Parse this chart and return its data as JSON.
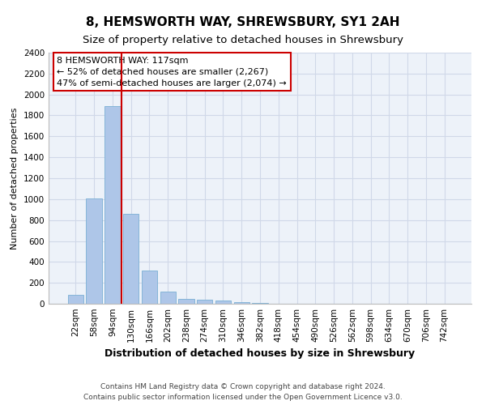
{
  "title": "8, HEMSWORTH WAY, SHREWSBURY, SY1 2AH",
  "subtitle": "Size of property relative to detached houses in Shrewsbury",
  "xlabel": "Distribution of detached houses by size in Shrewsbury",
  "ylabel": "Number of detached properties",
  "bin_labels": [
    "22sqm",
    "58sqm",
    "94sqm",
    "130sqm",
    "166sqm",
    "202sqm",
    "238sqm",
    "274sqm",
    "310sqm",
    "346sqm",
    "382sqm",
    "418sqm",
    "454sqm",
    "490sqm",
    "526sqm",
    "562sqm",
    "598sqm",
    "634sqm",
    "670sqm",
    "706sqm",
    "742sqm"
  ],
  "bin_values": [
    85,
    1010,
    1890,
    860,
    315,
    115,
    50,
    38,
    28,
    15,
    5,
    0,
    0,
    0,
    0,
    0,
    0,
    0,
    0,
    0,
    0
  ],
  "bar_color": "#aec6e8",
  "bar_edge_color": "#7aafd4",
  "vline_x": 2.5,
  "vline_color": "#cc0000",
  "annotation_text": "8 HEMSWORTH WAY: 117sqm\n← 52% of detached houses are smaller (2,267)\n47% of semi-detached houses are larger (2,074) →",
  "annotation_box_color": "#ffffff",
  "annotation_box_edge_color": "#cc0000",
  "ylim": [
    0,
    2400
  ],
  "yticks": [
    0,
    200,
    400,
    600,
    800,
    1000,
    1200,
    1400,
    1600,
    1800,
    2000,
    2200,
    2400
  ],
  "grid_color": "#d0d8e8",
  "bg_color": "#edf2f9",
  "footer_text": "Contains HM Land Registry data © Crown copyright and database right 2024.\nContains public sector information licensed under the Open Government Licence v3.0.",
  "title_fontsize": 11,
  "subtitle_fontsize": 9.5,
  "xlabel_fontsize": 9,
  "ylabel_fontsize": 8,
  "tick_fontsize": 7.5,
  "annotation_fontsize": 8,
  "footer_fontsize": 6.5
}
